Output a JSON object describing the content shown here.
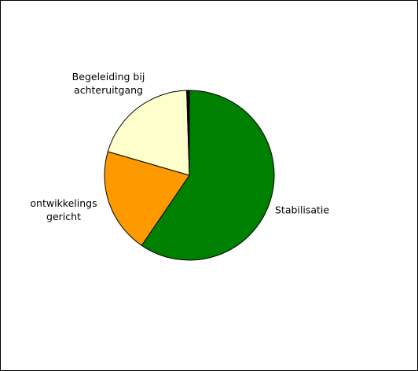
{
  "chart_data": {
    "type": "pie",
    "title": "",
    "slices": [
      {
        "label": "Stabilisatie",
        "value": 59.5,
        "color": "#008000"
      },
      {
        "label": "ontwikkelings gericht",
        "label_lines": [
          "ontwikkelings",
          "gericht"
        ],
        "value": 20,
        "color": "#FF9900"
      },
      {
        "label": "Begeleiding bij achteruitgang",
        "label_lines": [
          "Begeleiding bij",
          "achteruitgang"
        ],
        "value": 20,
        "color": "#FFFFCC"
      },
      {
        "label": "",
        "value": 0.5,
        "color": "#000000"
      }
    ],
    "legend": "none",
    "slice_border": "#000000"
  }
}
